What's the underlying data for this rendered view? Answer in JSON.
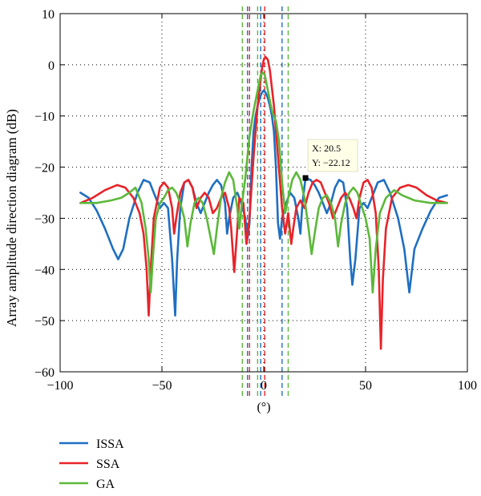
{
  "chart_data": {
    "type": "line",
    "title": "",
    "xlabel": "(°)",
    "ylabel": "Array amplitude direction diagram (dB)",
    "xlim": [
      -100,
      100
    ],
    "ylim": [
      -60,
      10
    ],
    "xticks": [
      -100,
      -50,
      0,
      50,
      100
    ],
    "yticks": [
      -60,
      -50,
      -40,
      -30,
      -20,
      -10,
      0,
      10
    ],
    "grid": true,
    "legend_position": "bottom-left",
    "series": [
      {
        "name": "ISSA",
        "color": "#1f6fc1",
        "points": [
          [
            -90,
            -25
          ],
          [
            -86,
            -26
          ],
          [
            -82,
            -28.5
          ],
          [
            -78,
            -32
          ],
          [
            -74,
            -36
          ],
          [
            -71.5,
            -38
          ],
          [
            -69,
            -36
          ],
          [
            -66,
            -30
          ],
          [
            -62,
            -25
          ],
          [
            -59,
            -22.5
          ],
          [
            -56,
            -23
          ],
          [
            -54,
            -25
          ],
          [
            -51,
            -28
          ],
          [
            -49,
            -27
          ],
          [
            -47,
            -28
          ],
          [
            -45,
            -38
          ],
          [
            -43.5,
            -49
          ],
          [
            -42.5,
            -38
          ],
          [
            -41,
            -28
          ],
          [
            -39,
            -23
          ],
          [
            -37,
            -22.5
          ],
          [
            -35,
            -24
          ],
          [
            -33,
            -27
          ],
          [
            -31,
            -29
          ],
          [
            -29,
            -27
          ],
          [
            -27,
            -25
          ],
          [
            -25,
            -23.5
          ],
          [
            -23,
            -22.5
          ],
          [
            -21,
            -23.5
          ],
          [
            -19,
            -27
          ],
          [
            -18,
            -33
          ],
          [
            -17,
            -30
          ],
          [
            -15,
            -26
          ],
          [
            -13,
            -25
          ],
          [
            -11,
            -27
          ],
          [
            -9,
            -30
          ],
          [
            -8,
            -34
          ],
          [
            -7,
            -31
          ],
          [
            -6,
            -20
          ],
          [
            -5,
            -13
          ],
          [
            -4,
            -10
          ],
          [
            -3,
            -8
          ],
          [
            -2,
            -6.5
          ],
          [
            -1,
            -5.5
          ],
          [
            0,
            -5
          ],
          [
            1,
            -5.5
          ],
          [
            2,
            -6.5
          ],
          [
            3,
            -8
          ],
          [
            4,
            -10
          ],
          [
            5,
            -13
          ],
          [
            6,
            -20
          ],
          [
            7,
            -31
          ],
          [
            8,
            -34
          ],
          [
            9,
            -30
          ],
          [
            11,
            -27
          ],
          [
            13,
            -25
          ],
          [
            15,
            -26
          ],
          [
            17,
            -30
          ],
          [
            18,
            -33
          ],
          [
            19,
            -27
          ],
          [
            20.5,
            -22.12
          ],
          [
            23,
            -22.5
          ],
          [
            25,
            -23.5
          ],
          [
            27,
            -25
          ],
          [
            29,
            -27
          ],
          [
            31,
            -29
          ],
          [
            33,
            -27
          ],
          [
            35,
            -24
          ],
          [
            37,
            -22.5
          ],
          [
            39,
            -23
          ],
          [
            41,
            -28
          ],
          [
            42.5,
            -38
          ],
          [
            43.5,
            -43
          ],
          [
            45,
            -38
          ],
          [
            47,
            -28
          ],
          [
            49,
            -27
          ],
          [
            51,
            -28
          ],
          [
            54,
            -25
          ],
          [
            56,
            -23
          ],
          [
            59,
            -22.5
          ],
          [
            62,
            -25
          ],
          [
            66,
            -30
          ],
          [
            69,
            -36
          ],
          [
            71.5,
            -44.5
          ],
          [
            74,
            -36
          ],
          [
            78,
            -32
          ],
          [
            82,
            -28.5
          ],
          [
            86,
            -26
          ],
          [
            90,
            -25.5
          ]
        ]
      },
      {
        "name": "SSA",
        "color": "#e8232a",
        "points": [
          [
            -90,
            -27
          ],
          [
            -84,
            -26
          ],
          [
            -78,
            -24.5
          ],
          [
            -72,
            -23.5
          ],
          [
            -68,
            -24
          ],
          [
            -64,
            -26
          ],
          [
            -61,
            -29
          ],
          [
            -59,
            -33
          ],
          [
            -57.5,
            -40
          ],
          [
            -56.5,
            -49
          ],
          [
            -55.5,
            -40
          ],
          [
            -54,
            -30
          ],
          [
            -51,
            -24
          ],
          [
            -49,
            -23
          ],
          [
            -47,
            -24
          ],
          [
            -45,
            -28
          ],
          [
            -44,
            -33
          ],
          [
            -43,
            -30
          ],
          [
            -41,
            -25
          ],
          [
            -39,
            -23
          ],
          [
            -37,
            -22.5
          ],
          [
            -35,
            -24
          ],
          [
            -33,
            -28
          ],
          [
            -31,
            -26
          ],
          [
            -29,
            -25
          ],
          [
            -27,
            -26
          ],
          [
            -25,
            -29
          ],
          [
            -23,
            -28
          ],
          [
            -21,
            -26
          ],
          [
            -19,
            -25
          ],
          [
            -17,
            -28
          ],
          [
            -16,
            -32
          ],
          [
            -14.5,
            -40.5
          ],
          [
            -13,
            -32
          ],
          [
            -12,
            -26
          ],
          [
            -10,
            -27
          ],
          [
            -8.5,
            -35
          ],
          [
            -7,
            -30
          ],
          [
            -5,
            -18
          ],
          [
            -3,
            -8
          ],
          [
            -1,
            -1
          ],
          [
            0,
            1
          ],
          [
            1,
            1.5
          ],
          [
            2,
            1
          ],
          [
            3,
            -1
          ],
          [
            5,
            -8
          ],
          [
            7,
            -18
          ],
          [
            9,
            -28
          ],
          [
            10.5,
            -33
          ],
          [
            12,
            -29
          ],
          [
            13.5,
            -35
          ],
          [
            14.5,
            -32
          ],
          [
            16,
            -28
          ],
          [
            18,
            -26.5
          ],
          [
            20,
            -28
          ],
          [
            22,
            -25
          ],
          [
            24,
            -23
          ],
          [
            26,
            -22.5
          ],
          [
            28,
            -23
          ],
          [
            30,
            -25
          ],
          [
            32,
            -27
          ],
          [
            34,
            -30
          ],
          [
            36,
            -28
          ],
          [
            38,
            -26
          ],
          [
            40,
            -25
          ],
          [
            42,
            -26
          ],
          [
            44,
            -28
          ],
          [
            45.5,
            -30
          ],
          [
            47,
            -26
          ],
          [
            49,
            -23
          ],
          [
            51,
            -22.5
          ],
          [
            53,
            -24
          ],
          [
            55,
            -29
          ],
          [
            56.5,
            -40
          ],
          [
            57.5,
            -55.5
          ],
          [
            58.5,
            -42
          ],
          [
            60,
            -32
          ],
          [
            63,
            -26
          ],
          [
            67,
            -24
          ],
          [
            71,
            -23.5
          ],
          [
            75,
            -24
          ],
          [
            80,
            -25.5
          ],
          [
            85,
            -26.5
          ],
          [
            90,
            -27
          ]
        ]
      },
      {
        "name": "GA",
        "color": "#5cb83a",
        "points": [
          [
            -90,
            -27
          ],
          [
            -82,
            -27
          ],
          [
            -75,
            -26.5
          ],
          [
            -70,
            -26
          ],
          [
            -66,
            -25
          ],
          [
            -63,
            -24
          ],
          [
            -60,
            -27
          ],
          [
            -58,
            -32
          ],
          [
            -56.5,
            -38
          ],
          [
            -55.5,
            -44.5
          ],
          [
            -54.5,
            -38
          ],
          [
            -53,
            -30
          ],
          [
            -51,
            -27
          ],
          [
            -49,
            -26
          ],
          [
            -47,
            -24.5
          ],
          [
            -45,
            -24
          ],
          [
            -43,
            -25
          ],
          [
            -41,
            -27
          ],
          [
            -39,
            -30
          ],
          [
            -37.5,
            -35.5
          ],
          [
            -36,
            -31
          ],
          [
            -34,
            -27
          ],
          [
            -32,
            -26
          ],
          [
            -30,
            -27
          ],
          [
            -28,
            -30
          ],
          [
            -26,
            -34
          ],
          [
            -24.5,
            -37
          ],
          [
            -23,
            -32
          ],
          [
            -21,
            -26
          ],
          [
            -19,
            -23
          ],
          [
            -17,
            -21
          ],
          [
            -15,
            -22.5
          ],
          [
            -13,
            -28
          ],
          [
            -12,
            -32
          ],
          [
            -11,
            -28
          ],
          [
            -9,
            -22
          ],
          [
            -7,
            -14
          ],
          [
            -5,
            -9
          ],
          [
            -3,
            -5
          ],
          [
            -1.5,
            -2
          ],
          [
            -0.5,
            -1.5
          ],
          [
            0.5,
            -2
          ],
          [
            2,
            -5
          ],
          [
            4,
            -9
          ],
          [
            6,
            -11
          ],
          [
            7.5,
            -15
          ],
          [
            9,
            -23
          ],
          [
            10.5,
            -29
          ],
          [
            12,
            -26
          ],
          [
            14,
            -22.5
          ],
          [
            16,
            -21
          ],
          [
            18,
            -22.5
          ],
          [
            20,
            -26
          ],
          [
            22,
            -32
          ],
          [
            23.5,
            -37
          ],
          [
            25,
            -33
          ],
          [
            27,
            -28
          ],
          [
            29,
            -26
          ],
          [
            31,
            -25.5
          ],
          [
            33,
            -27
          ],
          [
            35,
            -30
          ],
          [
            36.5,
            -35.5
          ],
          [
            38,
            -31
          ],
          [
            40,
            -27
          ],
          [
            42,
            -25
          ],
          [
            44,
            -24
          ],
          [
            46,
            -25
          ],
          [
            48,
            -27.5
          ],
          [
            50,
            -30
          ],
          [
            52,
            -34
          ],
          [
            53.5,
            -44.5
          ],
          [
            55,
            -36
          ],
          [
            57,
            -29
          ],
          [
            60,
            -26
          ],
          [
            64,
            -24.5
          ],
          [
            68,
            -25.5
          ],
          [
            74,
            -26.5
          ],
          [
            82,
            -27
          ],
          [
            90,
            -27
          ]
        ]
      }
    ],
    "vertical_markers": [
      {
        "x": -10.5,
        "color": "#5cb83a"
      },
      {
        "x": -8,
        "color": "#1f6fc1"
      },
      {
        "x": -7,
        "color": "#e8232a"
      },
      {
        "x": -3,
        "color": "#5cb83a"
      },
      {
        "x": -1.5,
        "color": "#1f6fc1"
      },
      {
        "x": 0.5,
        "color": "#e8232a"
      },
      {
        "x": 9,
        "color": "#1f6fc1"
      },
      {
        "x": 12,
        "color": "#5cb83a"
      }
    ],
    "datatip": {
      "x": 20.5,
      "y": -22.12,
      "x_label": "X: 20.5",
      "y_label": "Y: −22.12"
    }
  }
}
